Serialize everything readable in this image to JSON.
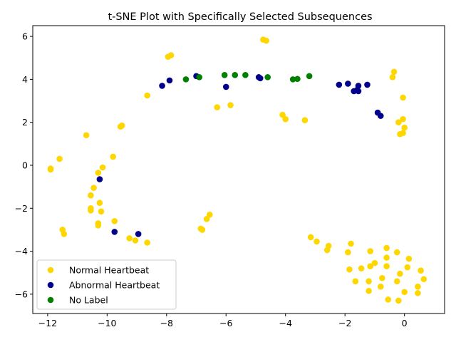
{
  "chart_data": {
    "type": "scatter",
    "title": "t-SNE Plot with Specifically Selected Subsequences",
    "xlabel": "",
    "ylabel": "",
    "xlim": [
      -12.5,
      1.35
    ],
    "ylim": [
      -6.9,
      6.5
    ],
    "xticks": [
      -12,
      -10,
      -8,
      -6,
      -4,
      -2,
      0
    ],
    "yticks": [
      -6,
      -4,
      -2,
      0,
      2,
      4,
      6
    ],
    "grid": false,
    "legend_position": "lower-left",
    "series": [
      {
        "name": "Normal Heartbeat",
        "color": "#FFD700",
        "points": [
          [
            -11.9,
            -0.2
          ],
          [
            -11.9,
            -0.15
          ],
          [
            -11.6,
            0.3
          ],
          [
            -10.7,
            1.4
          ],
          [
            -9.8,
            0.4
          ],
          [
            -10.15,
            -0.1
          ],
          [
            -10.3,
            -0.35
          ],
          [
            -10.45,
            -1.05
          ],
          [
            -10.55,
            -1.4
          ],
          [
            -10.55,
            -2.0
          ],
          [
            -10.55,
            -2.1
          ],
          [
            -10.25,
            -1.75
          ],
          [
            -10.2,
            -2.15
          ],
          [
            -9.75,
            -2.6
          ],
          [
            -10.3,
            -2.7
          ],
          [
            -10.3,
            -2.8
          ],
          [
            -11.5,
            -3.0
          ],
          [
            -11.45,
            -3.2
          ],
          [
            -9.25,
            -3.4
          ],
          [
            -9.05,
            -3.5
          ],
          [
            -8.65,
            -3.6
          ],
          [
            -9.55,
            1.8
          ],
          [
            -9.5,
            1.85
          ],
          [
            -8.65,
            3.25
          ],
          [
            -7.95,
            5.05
          ],
          [
            -7.85,
            5.12
          ],
          [
            -6.85,
            -2.95
          ],
          [
            -6.8,
            -3.0
          ],
          [
            -6.65,
            -2.5
          ],
          [
            -6.55,
            -2.3
          ],
          [
            -6.3,
            2.7
          ],
          [
            -5.85,
            2.8
          ],
          [
            -4.75,
            5.85
          ],
          [
            -4.65,
            5.8
          ],
          [
            -4.1,
            2.35
          ],
          [
            -4.0,
            2.15
          ],
          [
            -3.35,
            2.1
          ],
          [
            -3.15,
            -3.35
          ],
          [
            -2.95,
            -3.55
          ],
          [
            -2.55,
            -3.75
          ],
          [
            -2.6,
            -3.95
          ],
          [
            -1.8,
            -3.65
          ],
          [
            -1.9,
            -4.05
          ],
          [
            -1.85,
            -4.85
          ],
          [
            -1.65,
            -5.4
          ],
          [
            -1.45,
            -4.8
          ],
          [
            -1.15,
            -4.0
          ],
          [
            -1.15,
            -4.7
          ],
          [
            -1.0,
            -4.55
          ],
          [
            -1.2,
            -5.4
          ],
          [
            -1.2,
            -5.85
          ],
          [
            -0.75,
            -5.25
          ],
          [
            -0.8,
            -5.65
          ],
          [
            -0.6,
            -4.3
          ],
          [
            -0.6,
            -4.7
          ],
          [
            -0.6,
            -3.85
          ],
          [
            -0.55,
            -6.25
          ],
          [
            -0.25,
            -4.05
          ],
          [
            -0.25,
            -5.4
          ],
          [
            -0.2,
            -6.3
          ],
          [
            -0.15,
            -5.05
          ],
          [
            0.0,
            -5.9
          ],
          [
            0.1,
            -4.75
          ],
          [
            0.15,
            -4.35
          ],
          [
            0.45,
            -5.65
          ],
          [
            0.45,
            -5.95
          ],
          [
            0.55,
            -4.9
          ],
          [
            0.65,
            -5.3
          ],
          [
            -0.35,
            4.35
          ],
          [
            -0.4,
            4.1
          ],
          [
            -0.05,
            3.15
          ],
          [
            -0.2,
            2.0
          ],
          [
            -0.05,
            2.15
          ],
          [
            0.0,
            1.75
          ],
          [
            -0.05,
            1.5
          ],
          [
            -0.15,
            1.45
          ]
        ]
      },
      {
        "name": "Abnormal Heartbeat",
        "color": "#00008B",
        "points": [
          [
            -10.25,
            -0.65
          ],
          [
            -9.75,
            -3.1
          ],
          [
            -8.95,
            -3.2
          ],
          [
            -8.15,
            3.7
          ],
          [
            -7.9,
            3.95
          ],
          [
            -7.0,
            4.15
          ],
          [
            -6.0,
            3.65
          ],
          [
            -4.9,
            4.1
          ],
          [
            -4.85,
            4.05
          ],
          [
            -2.2,
            3.75
          ],
          [
            -1.9,
            3.8
          ],
          [
            -1.7,
            3.45
          ],
          [
            -1.6,
            3.5
          ],
          [
            -1.55,
            3.45
          ],
          [
            -1.55,
            3.7
          ],
          [
            -1.25,
            3.75
          ],
          [
            -0.9,
            2.45
          ],
          [
            -0.8,
            2.3
          ]
        ]
      },
      {
        "name": "No Label",
        "color": "#008000",
        "points": [
          [
            -7.35,
            4.0
          ],
          [
            -6.9,
            4.1
          ],
          [
            -6.05,
            4.2
          ],
          [
            -5.7,
            4.2
          ],
          [
            -5.35,
            4.2
          ],
          [
            -4.6,
            4.1
          ],
          [
            -3.75,
            4.0
          ],
          [
            -3.6,
            4.02
          ],
          [
            -3.2,
            4.15
          ]
        ]
      }
    ]
  }
}
